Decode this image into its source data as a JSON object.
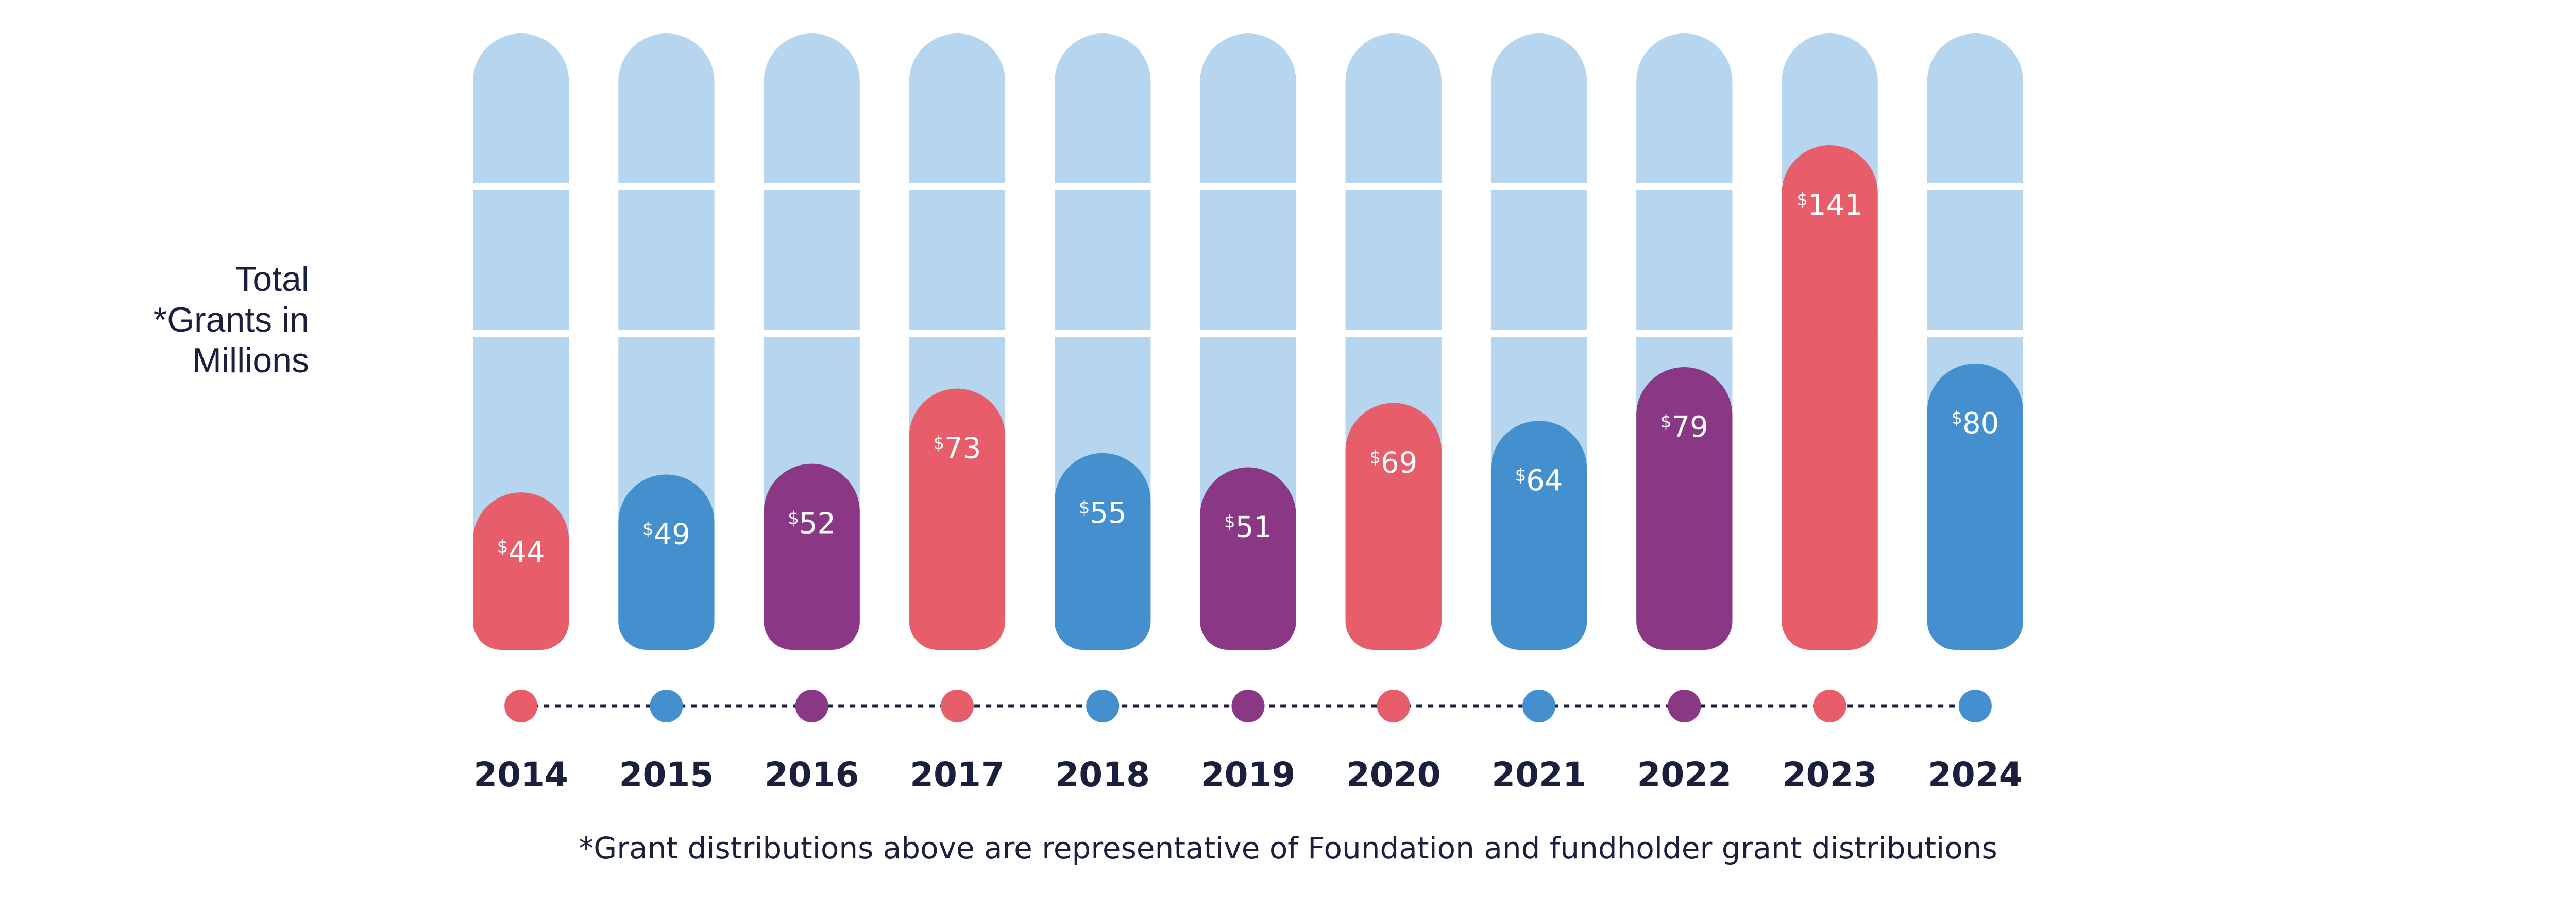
{
  "chart_data": {
    "type": "bar",
    "ylabel": [
      "Total",
      "*Grants in",
      "Millions"
    ],
    "categories": [
      "2014",
      "2015",
      "2016",
      "2017",
      "2018",
      "2019",
      "2020",
      "2021",
      "2022",
      "2023",
      "2024"
    ],
    "values": [
      44,
      49,
      52,
      73,
      55,
      51,
      69,
      64,
      79,
      141,
      80
    ],
    "value_labels": [
      "44",
      "49",
      "52",
      "73",
      "55",
      "51",
      "69",
      "64",
      "79",
      "141",
      "80"
    ],
    "currency_symbol": "$",
    "ylim": [
      0,
      160
    ],
    "footnote": "*Grant distributions above are representative of Foundation and fundholder grant distributions"
  },
  "colors": {
    "background_pill": "#b6d5ee",
    "red": "#e75d69",
    "blue": "#4490cf",
    "purple": "#8a3886",
    "text": "#1a1f3d"
  },
  "bar_colors": [
    "red",
    "blue",
    "purple",
    "red",
    "blue",
    "purple",
    "red",
    "blue",
    "purple",
    "red",
    "blue"
  ]
}
